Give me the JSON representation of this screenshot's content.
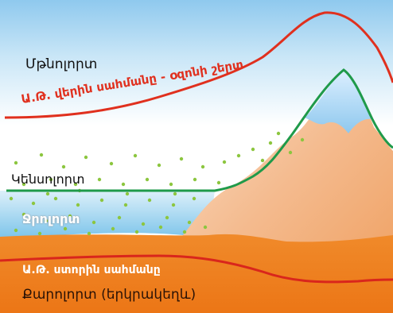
{
  "diagram": {
    "labels": {
      "stratosphere": "Մթնոլորտ",
      "upper_limit": "Ա.Թ. վերին սահմանը - օզոնի շերտ",
      "biosphere": "Կենսոլորտ",
      "hydrosphere": "Ջրոլորտ",
      "lower_limit": "Ա.Թ. ստորին սահմանը",
      "lithosphere": "Քարոլորտ (երկրակեղև)"
    },
    "colors": {
      "sky_top": "#8fc9ee",
      "sky_bottom": "#ffffff",
      "upper_limit_line": "#e0301e",
      "biosphere_line": "#1f9a4a",
      "lower_limit_line": "#d9261c",
      "ground": "#f07f1e",
      "mountain": "#f2b98e",
      "water": "#a9d9f0",
      "dots": "#8cc63f",
      "text_dark": "#111111",
      "text_light": "#ffffff"
    }
  }
}
